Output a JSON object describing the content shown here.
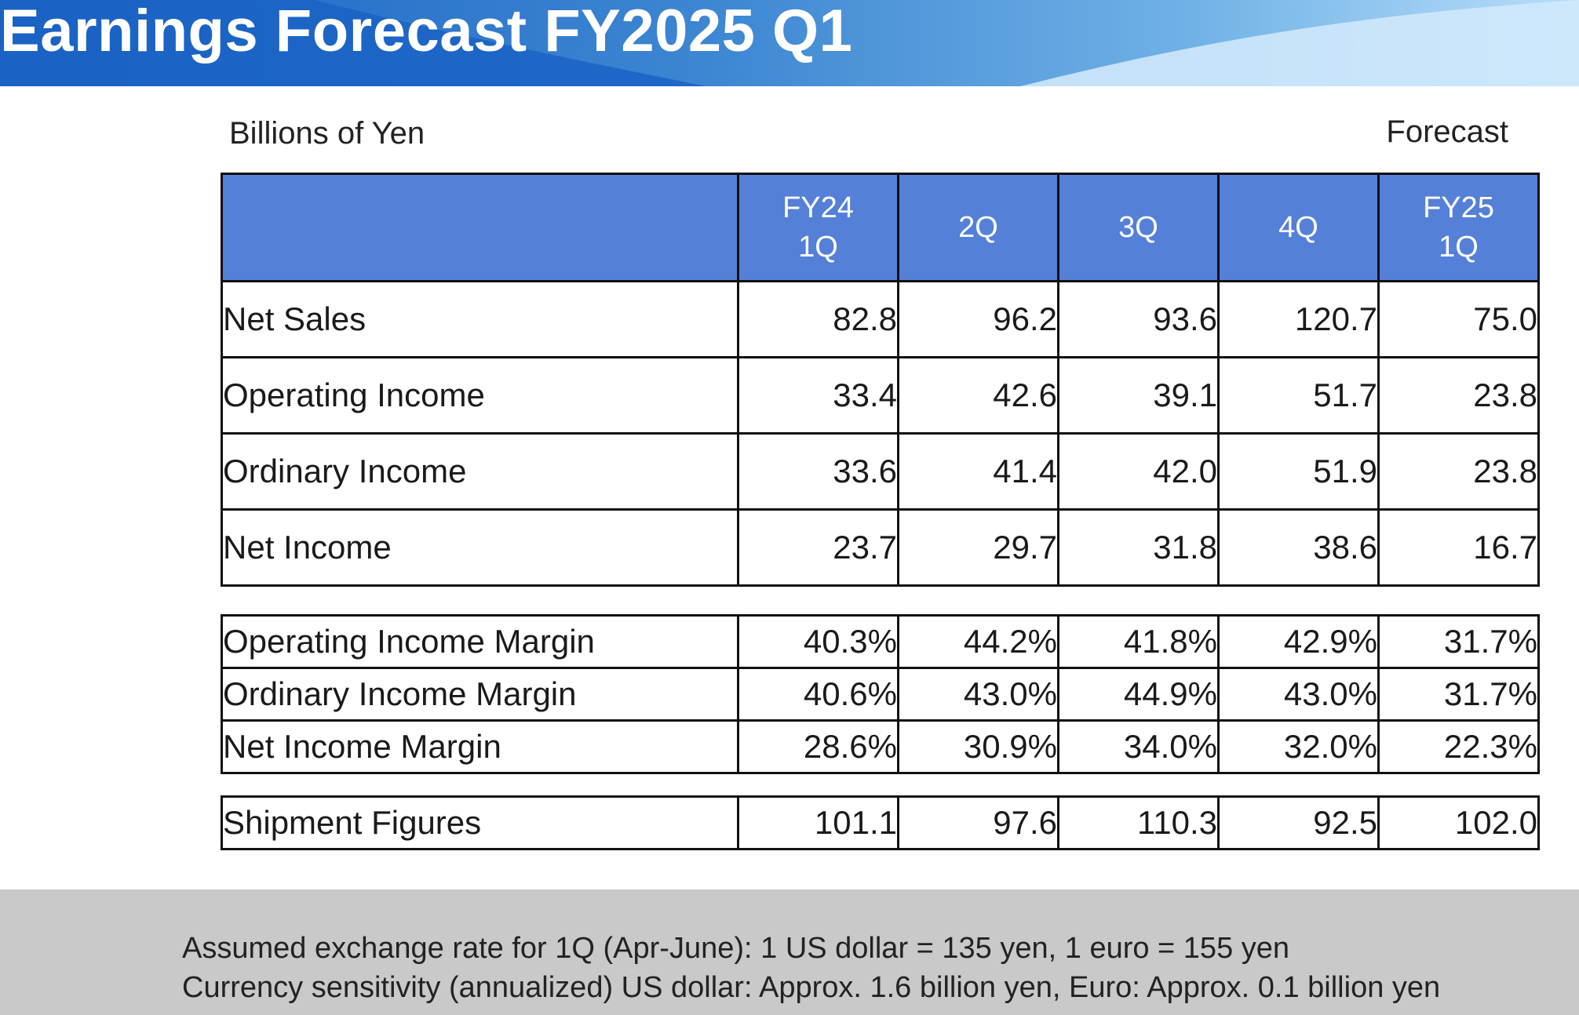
{
  "header": {
    "title": "Earnings Forecast FY2025 Q1"
  },
  "captions": {
    "unit": "Billions of Yen",
    "forecast": "Forecast"
  },
  "colors": {
    "header_fill": "#5580d8",
    "banner_dark": "#1a63c4",
    "banner_light": "#a9d6f4",
    "footer_fill": "#c9c9c9"
  },
  "columns": [
    {
      "line1": "FY24",
      "line2": "1Q"
    },
    {
      "line1": "2Q",
      "line2": ""
    },
    {
      "line1": "3Q",
      "line2": ""
    },
    {
      "line1": "4Q",
      "line2": ""
    },
    {
      "line1": "FY25",
      "line2": "1Q"
    }
  ],
  "income_rows": [
    {
      "label": "Net Sales",
      "values": [
        "82.8",
        "96.2",
        "93.6",
        "120.7",
        "75.0"
      ]
    },
    {
      "label": "Operating Income",
      "values": [
        "33.4",
        "42.6",
        "39.1",
        "51.7",
        "23.8"
      ]
    },
    {
      "label": "Ordinary Income",
      "values": [
        "33.6",
        "41.4",
        "42.0",
        "51.9",
        "23.8"
      ]
    },
    {
      "label": "Net Income",
      "values": [
        "23.7",
        "29.7",
        "31.8",
        "38.6",
        "16.7"
      ]
    }
  ],
  "margin_rows": [
    {
      "label": "Operating Income Margin",
      "values": [
        "40.3%",
        "44.2%",
        "41.8%",
        "42.9%",
        "31.7%"
      ]
    },
    {
      "label": "Ordinary Income Margin",
      "values": [
        "40.6%",
        "43.0%",
        "44.9%",
        "43.0%",
        "31.7%"
      ]
    },
    {
      "label": "Net Income Margin",
      "values": [
        "28.6%",
        "30.9%",
        "34.0%",
        "32.0%",
        "22.3%"
      ]
    }
  ],
  "shipment_rows": [
    {
      "label": "Shipment Figures",
      "values": [
        "101.1",
        "97.6",
        "110.3",
        "92.5",
        "102.0"
      ]
    }
  ],
  "footer": {
    "line1": "Assumed exchange rate for 1Q (Apr-June): 1 US dollar = 135 yen, 1 euro = 155 yen",
    "line2": "Currency sensitivity (annualized) US dollar: Approx. 1.6 billion yen, Euro: Approx. 0.1 billion yen"
  }
}
